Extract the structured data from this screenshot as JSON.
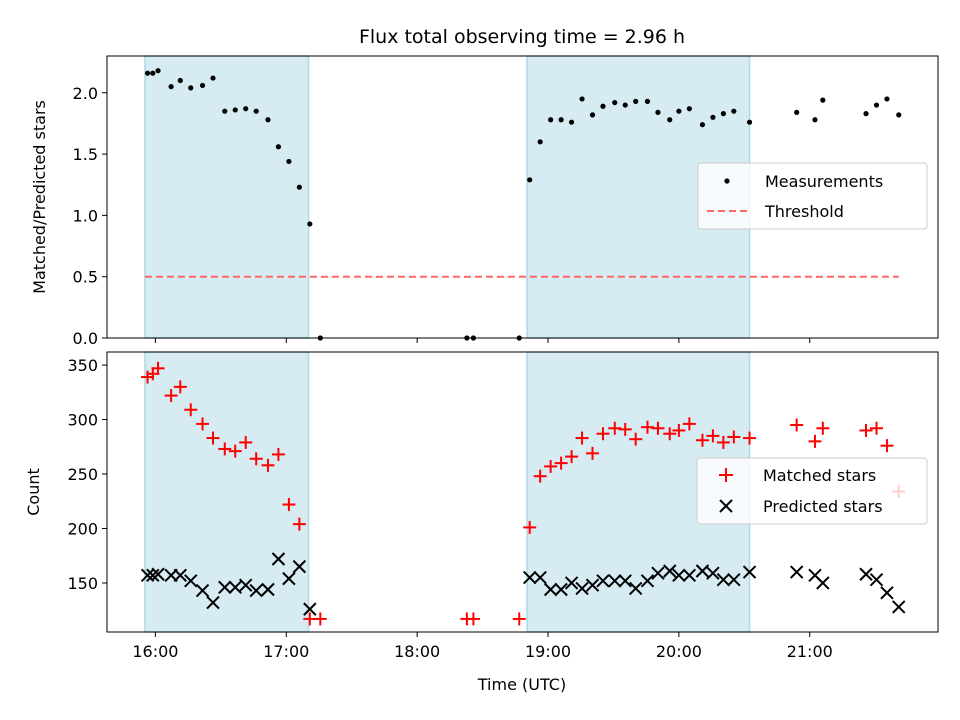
{
  "chart_data": {
    "type": "scatter",
    "title": "Flux total observing time = 2.96 h",
    "xlabel": "Time (UTC)",
    "x_unit": "hours UTC",
    "x_ticks": [
      {
        "v": 16,
        "label": "16:00"
      },
      {
        "v": 17,
        "label": "17:00"
      },
      {
        "v": 18,
        "label": "18:00"
      },
      {
        "v": 19,
        "label": "19:00"
      },
      {
        "v": 20,
        "label": "20:00"
      },
      {
        "v": 21,
        "label": "21:00"
      }
    ],
    "xlim": [
      15.63,
      21.98
    ],
    "shaded_intervals": [
      [
        15.92,
        17.17
      ],
      [
        18.84,
        20.54
      ]
    ],
    "colors": {
      "shade": "#add8e6",
      "measurements": "#000000",
      "threshold": "#ff6666",
      "matched": "#ff0000",
      "predicted": "#000000"
    },
    "top": {
      "ylabel": "Matched/Predicted stars",
      "ylim": [
        0,
        2.3
      ],
      "yticks": [
        0.0,
        0.5,
        1.0,
        1.5,
        2.0
      ],
      "ytick_labels": [
        "0.0",
        "0.5",
        "1.0",
        "1.5",
        "2.0"
      ],
      "legend": [
        "Measurements",
        "Threshold"
      ],
      "legend_position": "center-right",
      "threshold": {
        "value": 0.5,
        "x": [
          15.92,
          21.68
        ]
      },
      "measurements": [
        [
          15.94,
          2.16
        ],
        [
          15.98,
          2.16
        ],
        [
          16.02,
          2.18
        ],
        [
          16.12,
          2.05
        ],
        [
          16.19,
          2.1
        ],
        [
          16.27,
          2.04
        ],
        [
          16.36,
          2.06
        ],
        [
          16.44,
          2.12
        ],
        [
          16.53,
          1.85
        ],
        [
          16.61,
          1.86
        ],
        [
          16.69,
          1.87
        ],
        [
          16.77,
          1.85
        ],
        [
          16.86,
          1.78
        ],
        [
          16.94,
          1.56
        ],
        [
          17.02,
          1.44
        ],
        [
          17.1,
          1.23
        ],
        [
          17.18,
          0.93
        ],
        [
          17.26,
          0.0
        ],
        [
          18.38,
          0.0
        ],
        [
          18.43,
          0.0
        ],
        [
          18.78,
          0.0
        ],
        [
          18.86,
          1.29
        ],
        [
          18.94,
          1.6
        ],
        [
          19.02,
          1.78
        ],
        [
          19.1,
          1.78
        ],
        [
          19.18,
          1.76
        ],
        [
          19.26,
          1.95
        ],
        [
          19.34,
          1.82
        ],
        [
          19.42,
          1.89
        ],
        [
          19.51,
          1.92
        ],
        [
          19.59,
          1.9
        ],
        [
          19.67,
          1.93
        ],
        [
          19.76,
          1.93
        ],
        [
          19.84,
          1.84
        ],
        [
          19.93,
          1.78
        ],
        [
          20.0,
          1.85
        ],
        [
          20.08,
          1.87
        ],
        [
          20.18,
          1.74
        ],
        [
          20.26,
          1.8
        ],
        [
          20.34,
          1.83
        ],
        [
          20.42,
          1.85
        ],
        [
          20.54,
          1.76
        ],
        [
          20.9,
          1.84
        ],
        [
          21.04,
          1.78
        ],
        [
          21.1,
          1.94
        ],
        [
          21.43,
          1.83
        ],
        [
          21.51,
          1.9
        ],
        [
          21.59,
          1.95
        ],
        [
          21.68,
          1.82
        ]
      ]
    },
    "bottom": {
      "ylabel": "Count",
      "ylim": [
        105,
        362
      ],
      "yticks": [
        150,
        200,
        250,
        300,
        350
      ],
      "ytick_labels": [
        "150",
        "200",
        "250",
        "300",
        "350"
      ],
      "legend": [
        "Matched stars",
        "Predicted stars"
      ],
      "legend_position": "center-right",
      "matched": [
        [
          15.94,
          339
        ],
        [
          15.98,
          342
        ],
        [
          16.02,
          347
        ],
        [
          16.12,
          322
        ],
        [
          16.19,
          330
        ],
        [
          16.27,
          309
        ],
        [
          16.36,
          296
        ],
        [
          16.44,
          283
        ],
        [
          16.53,
          273
        ],
        [
          16.61,
          271
        ],
        [
          16.69,
          279
        ],
        [
          16.77,
          264
        ],
        [
          16.86,
          258
        ],
        [
          16.94,
          268
        ],
        [
          17.02,
          222
        ],
        [
          17.1,
          204
        ],
        [
          17.18,
          117
        ],
        [
          17.26,
          117
        ],
        [
          18.38,
          117
        ],
        [
          18.43,
          117
        ],
        [
          18.78,
          117
        ],
        [
          18.86,
          201
        ],
        [
          18.94,
          248
        ],
        [
          19.02,
          257
        ],
        [
          19.1,
          260
        ],
        [
          19.18,
          266
        ],
        [
          19.26,
          283
        ],
        [
          19.34,
          269
        ],
        [
          19.42,
          287
        ],
        [
          19.51,
          292
        ],
        [
          19.59,
          291
        ],
        [
          19.67,
          282
        ],
        [
          19.76,
          293
        ],
        [
          19.84,
          292
        ],
        [
          19.93,
          287
        ],
        [
          20.0,
          290
        ],
        [
          20.08,
          296
        ],
        [
          20.18,
          281
        ],
        [
          20.26,
          285
        ],
        [
          20.34,
          279
        ],
        [
          20.42,
          284
        ],
        [
          20.54,
          283
        ],
        [
          20.9,
          295
        ],
        [
          21.04,
          280
        ],
        [
          21.1,
          292
        ],
        [
          21.43,
          290
        ],
        [
          21.51,
          292
        ],
        [
          21.59,
          276
        ],
        [
          21.68,
          234
        ]
      ],
      "predicted": [
        [
          15.94,
          157
        ],
        [
          15.98,
          157
        ],
        [
          16.02,
          158
        ],
        [
          16.12,
          157
        ],
        [
          16.19,
          157
        ],
        [
          16.27,
          152
        ],
        [
          16.36,
          143
        ],
        [
          16.44,
          132
        ],
        [
          16.53,
          146
        ],
        [
          16.61,
          146
        ],
        [
          16.69,
          148
        ],
        [
          16.77,
          143
        ],
        [
          16.86,
          144
        ],
        [
          16.94,
          172
        ],
        [
          17.02,
          154
        ],
        [
          17.1,
          165
        ],
        [
          17.18,
          126
        ],
        [
          18.86,
          155
        ],
        [
          18.94,
          155
        ],
        [
          19.02,
          144
        ],
        [
          19.1,
          144
        ],
        [
          19.18,
          150
        ],
        [
          19.26,
          145
        ],
        [
          19.34,
          148
        ],
        [
          19.42,
          152
        ],
        [
          19.51,
          152
        ],
        [
          19.59,
          152
        ],
        [
          19.67,
          145
        ],
        [
          19.76,
          152
        ],
        [
          19.84,
          159
        ],
        [
          19.93,
          161
        ],
        [
          20.0,
          157
        ],
        [
          20.08,
          157
        ],
        [
          20.18,
          161
        ],
        [
          20.26,
          159
        ],
        [
          20.34,
          153
        ],
        [
          20.42,
          153
        ],
        [
          20.54,
          160
        ],
        [
          20.9,
          160
        ],
        [
          21.04,
          157
        ],
        [
          21.1,
          150
        ],
        [
          21.43,
          158
        ],
        [
          21.51,
          153
        ],
        [
          21.59,
          141
        ],
        [
          21.68,
          128
        ]
      ]
    }
  }
}
